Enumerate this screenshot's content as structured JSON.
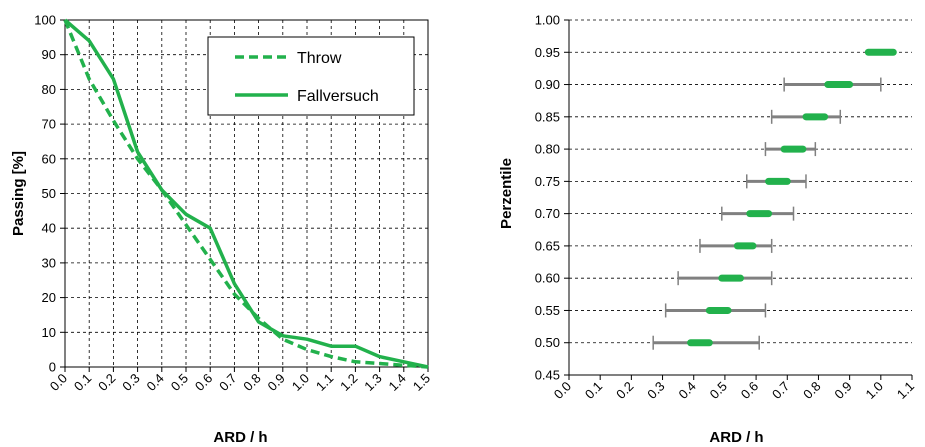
{
  "colors": {
    "green": "#22b14c",
    "gray": "#808080",
    "grid": "#000000"
  },
  "chart_data": [
    {
      "type": "line",
      "xlabel": "ARD / h",
      "ylabel": "Passing [%]",
      "xlim": [
        0,
        1.5
      ],
      "ylim": [
        0,
        100
      ],
      "x_ticks": [
        "0.0",
        "0.1",
        "0.2",
        "0.3",
        "0.4",
        "0.5",
        "0.6",
        "0.7",
        "0.8",
        "0.9",
        "1.0",
        "1.1",
        "1.2",
        "1.3",
        "1.4",
        "1.5"
      ],
      "y_ticks": [
        "0",
        "10",
        "20",
        "30",
        "40",
        "50",
        "60",
        "70",
        "80",
        "90",
        "100"
      ],
      "grid": true,
      "legend_position": "top-right",
      "series": [
        {
          "name": "Throw",
          "style": "dashed",
          "x": [
            0,
            0.1,
            0.2,
            0.3,
            0.4,
            0.5,
            0.6,
            0.7,
            0.8,
            0.9,
            1.0,
            1.1,
            1.2,
            1.3,
            1.4,
            1.5
          ],
          "y": [
            100,
            83,
            71,
            60,
            51,
            41,
            31,
            21,
            14,
            8,
            5,
            3,
            1.5,
            1,
            0.5,
            0
          ]
        },
        {
          "name": "Fallversuch",
          "style": "solid",
          "x": [
            0,
            0.1,
            0.2,
            0.3,
            0.4,
            0.5,
            0.6,
            0.7,
            0.8,
            0.9,
            1.0,
            1.1,
            1.2,
            1.3,
            1.4,
            1.5
          ],
          "y": [
            100,
            94,
            83,
            62,
            51,
            44,
            40,
            24,
            13,
            9,
            8,
            6,
            6,
            3,
            1.5,
            0
          ]
        }
      ]
    },
    {
      "type": "interval",
      "xlabel": "ARD / h",
      "ylabel": "Perzentile",
      "xlim": [
        0,
        1.1
      ],
      "ylim": [
        0.45,
        1.0
      ],
      "x_ticks": [
        "0.0",
        "0.1",
        "0.2",
        "0.3",
        "0.4",
        "0.5",
        "0.6",
        "0.7",
        "0.8",
        "0.9",
        "1.0",
        "1.1"
      ],
      "y_ticks": [
        "0.45",
        "0.50",
        "0.55",
        "0.60",
        "0.65",
        "0.70",
        "0.75",
        "0.80",
        "0.85",
        "0.90",
        "0.95",
        "1.00"
      ],
      "grid": true,
      "rows": [
        {
          "percentile": 0.5,
          "range": [
            0.27,
            0.61
          ],
          "core": [
            0.39,
            0.45
          ]
        },
        {
          "percentile": 0.55,
          "range": [
            0.31,
            0.63
          ],
          "core": [
            0.45,
            0.51
          ]
        },
        {
          "percentile": 0.6,
          "range": [
            0.35,
            0.65
          ],
          "core": [
            0.49,
            0.55
          ]
        },
        {
          "percentile": 0.65,
          "range": [
            0.42,
            0.65
          ],
          "core": [
            0.54,
            0.59
          ]
        },
        {
          "percentile": 0.7,
          "range": [
            0.49,
            0.72
          ],
          "core": [
            0.58,
            0.64
          ]
        },
        {
          "percentile": 0.75,
          "range": [
            0.57,
            0.76
          ],
          "core": [
            0.64,
            0.7
          ]
        },
        {
          "percentile": 0.8,
          "range": [
            0.63,
            0.79
          ],
          "core": [
            0.69,
            0.75
          ]
        },
        {
          "percentile": 0.85,
          "range": [
            0.65,
            0.87
          ],
          "core": [
            0.76,
            0.82
          ]
        },
        {
          "percentile": 0.9,
          "range": [
            0.69,
            1.0
          ],
          "core": [
            0.83,
            0.9
          ]
        },
        {
          "percentile": 0.95,
          "range": null,
          "core": [
            0.96,
            1.04
          ]
        }
      ]
    }
  ]
}
